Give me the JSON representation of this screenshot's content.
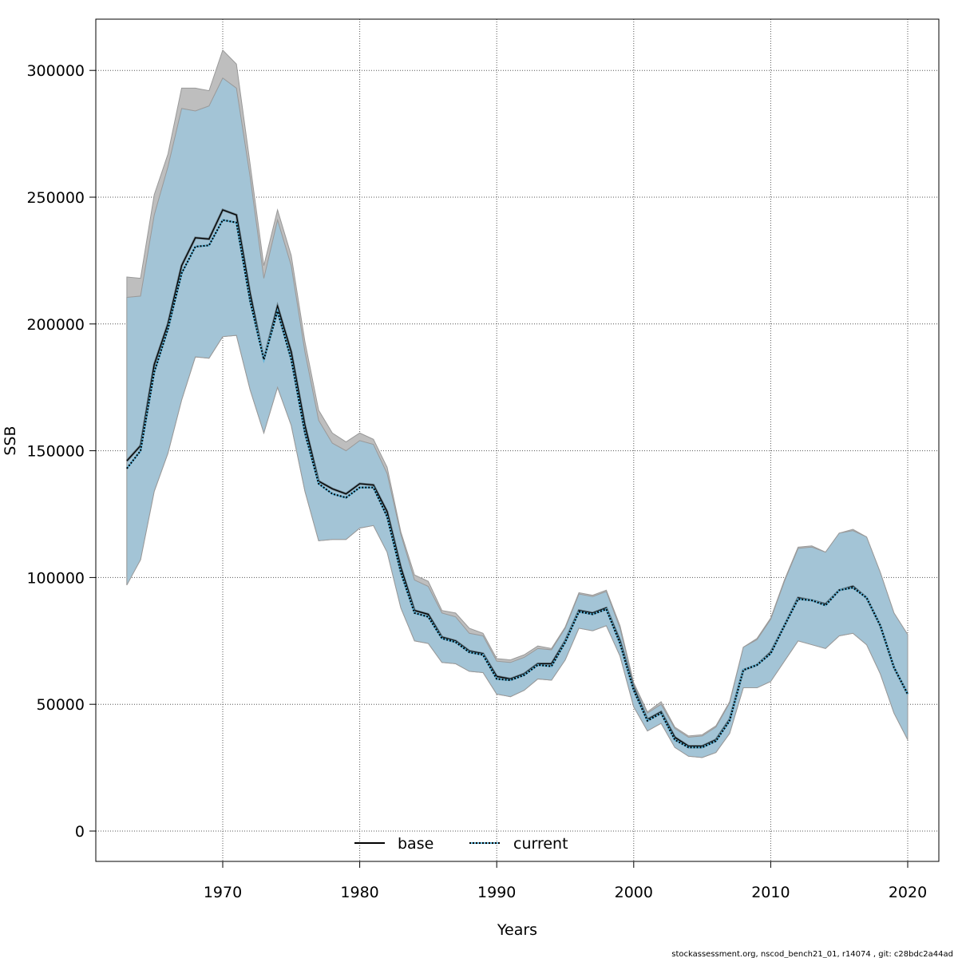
{
  "chart_data": {
    "type": "area",
    "title": "",
    "xlabel": "Years",
    "ylabel": "SSB",
    "xlim": [
      1961,
      2022.3
    ],
    "ylim": [
      -12000,
      320000
    ],
    "x_ticks": [
      1970,
      1980,
      1990,
      2000,
      2010,
      2020
    ],
    "y_ticks": [
      0,
      50000,
      100000,
      150000,
      200000,
      250000,
      300000
    ],
    "grid": true,
    "legend_position": "bottom",
    "x": [
      1963,
      1964,
      1965,
      1966,
      1967,
      1968,
      1969,
      1970,
      1971,
      1972,
      1973,
      1974,
      1975,
      1976,
      1977,
      1978,
      1979,
      1980,
      1981,
      1982,
      1983,
      1984,
      1985,
      1986,
      1987,
      1988,
      1989,
      1990,
      1991,
      1992,
      1993,
      1994,
      1995,
      1996,
      1997,
      1998,
      1999,
      2000,
      2001,
      2002,
      2003,
      2004,
      2005,
      2006,
      2007,
      2008,
      2009,
      2010,
      2011,
      2012,
      2013,
      2014,
      2015,
      2016,
      2017,
      2018,
      2019,
      2020
    ],
    "series": [
      {
        "name": "base",
        "line_color": "#000000",
        "band_color": "#bebebe",
        "values": [
          146000,
          152000,
          184000,
          200000,
          223000,
          234000,
          233500,
          245000,
          243000,
          212000,
          186000,
          207000,
          189000,
          160000,
          138000,
          135000,
          133000,
          137000,
          136500,
          126000,
          104000,
          87000,
          85500,
          76500,
          75000,
          71000,
          70000,
          61000,
          60000,
          62000,
          66000,
          66000,
          75000,
          87000,
          86000,
          88000,
          75000,
          56500,
          44000,
          47000,
          37000,
          33500,
          33500,
          36000,
          44000,
          63500,
          65500,
          70500,
          81000,
          92000,
          91000,
          89500,
          95000,
          96500,
          92000,
          81000,
          64500,
          54000
        ],
        "lower": [
          97500,
          107000,
          134000,
          149000,
          170000,
          187000,
          186500,
          195000,
          195500,
          174000,
          157000,
          175000,
          160000,
          134000,
          114500,
          115000,
          115000,
          119500,
          120500,
          110000,
          88000,
          75000,
          74000,
          66500,
          66000,
          63000,
          62500,
          54000,
          53000,
          55500,
          60000,
          59500,
          67500,
          80000,
          79000,
          81000,
          69000,
          49000,
          39500,
          42500,
          33000,
          29500,
          29000,
          31000,
          38500,
          56500,
          56500,
          59000,
          67000,
          75000,
          73500,
          72000,
          77000,
          78000,
          73500,
          62000,
          46500,
          36000
        ],
        "upper": [
          218500,
          218000,
          251000,
          267000,
          293000,
          293000,
          292000,
          308000,
          302500,
          263000,
          223000,
          245000,
          227000,
          193000,
          166000,
          157000,
          153500,
          157000,
          154500,
          143500,
          118000,
          101000,
          98500,
          87000,
          86000,
          80000,
          78000,
          68000,
          67500,
          69500,
          73000,
          72000,
          80500,
          94000,
          93000,
          95000,
          81000,
          58500,
          47000,
          51000,
          41000,
          37500,
          38000,
          41500,
          51000,
          72500,
          76000,
          84000,
          99000,
          112000,
          112500,
          110000,
          117500,
          119000,
          116000,
          102000,
          86000,
          77500
        ]
      },
      {
        "name": "current",
        "line_color": "#000000",
        "band_color": "#a3c4d6",
        "values": [
          143000,
          150000,
          181000,
          198000,
          220000,
          230500,
          231000,
          241000,
          240000,
          209000,
          186000,
          205000,
          186000,
          157000,
          137000,
          133000,
          131500,
          135500,
          135500,
          124000,
          102000,
          86000,
          84500,
          76000,
          74500,
          70500,
          69500,
          60000,
          59500,
          61500,
          65500,
          65000,
          74500,
          86500,
          85500,
          87500,
          74000,
          55500,
          43500,
          46500,
          36000,
          33000,
          33000,
          35500,
          43500,
          63500,
          65500,
          70000,
          81000,
          91500,
          91000,
          89000,
          95000,
          96000,
          92000,
          81000,
          64500,
          54000
        ],
        "lower": [
          97000,
          107000,
          134000,
          149000,
          170000,
          187000,
          186500,
          195000,
          195500,
          174000,
          157000,
          175000,
          160000,
          134000,
          114500,
          115000,
          115000,
          119500,
          120500,
          110000,
          88000,
          75000,
          74000,
          66500,
          66000,
          63000,
          62500,
          54000,
          53000,
          55500,
          60000,
          59500,
          67500,
          80000,
          79000,
          81000,
          69000,
          49000,
          39500,
          42500,
          33000,
          29500,
          29000,
          31000,
          38500,
          56500,
          56500,
          59000,
          67000,
          75000,
          73500,
          72000,
          77000,
          78000,
          73500,
          62000,
          46500,
          36000
        ],
        "upper": [
          210500,
          211000,
          243000,
          262000,
          285000,
          284000,
          286000,
          297000,
          293000,
          258000,
          218000,
          241000,
          223000,
          189000,
          162000,
          153000,
          150000,
          154000,
          152500,
          141000,
          117000,
          99000,
          96500,
          86000,
          84500,
          78000,
          77000,
          67000,
          66500,
          68500,
          72000,
          71500,
          80000,
          93500,
          92500,
          94500,
          80000,
          58000,
          46500,
          50000,
          40500,
          37000,
          37500,
          41000,
          50500,
          72500,
          75500,
          83500,
          98500,
          111500,
          112000,
          110000,
          117500,
          118500,
          116000,
          102000,
          86000,
          77500
        ]
      }
    ]
  },
  "footer": "stockassessment.org, nscod_bench21_01, r14074 , git: c28bdc2a44ad"
}
